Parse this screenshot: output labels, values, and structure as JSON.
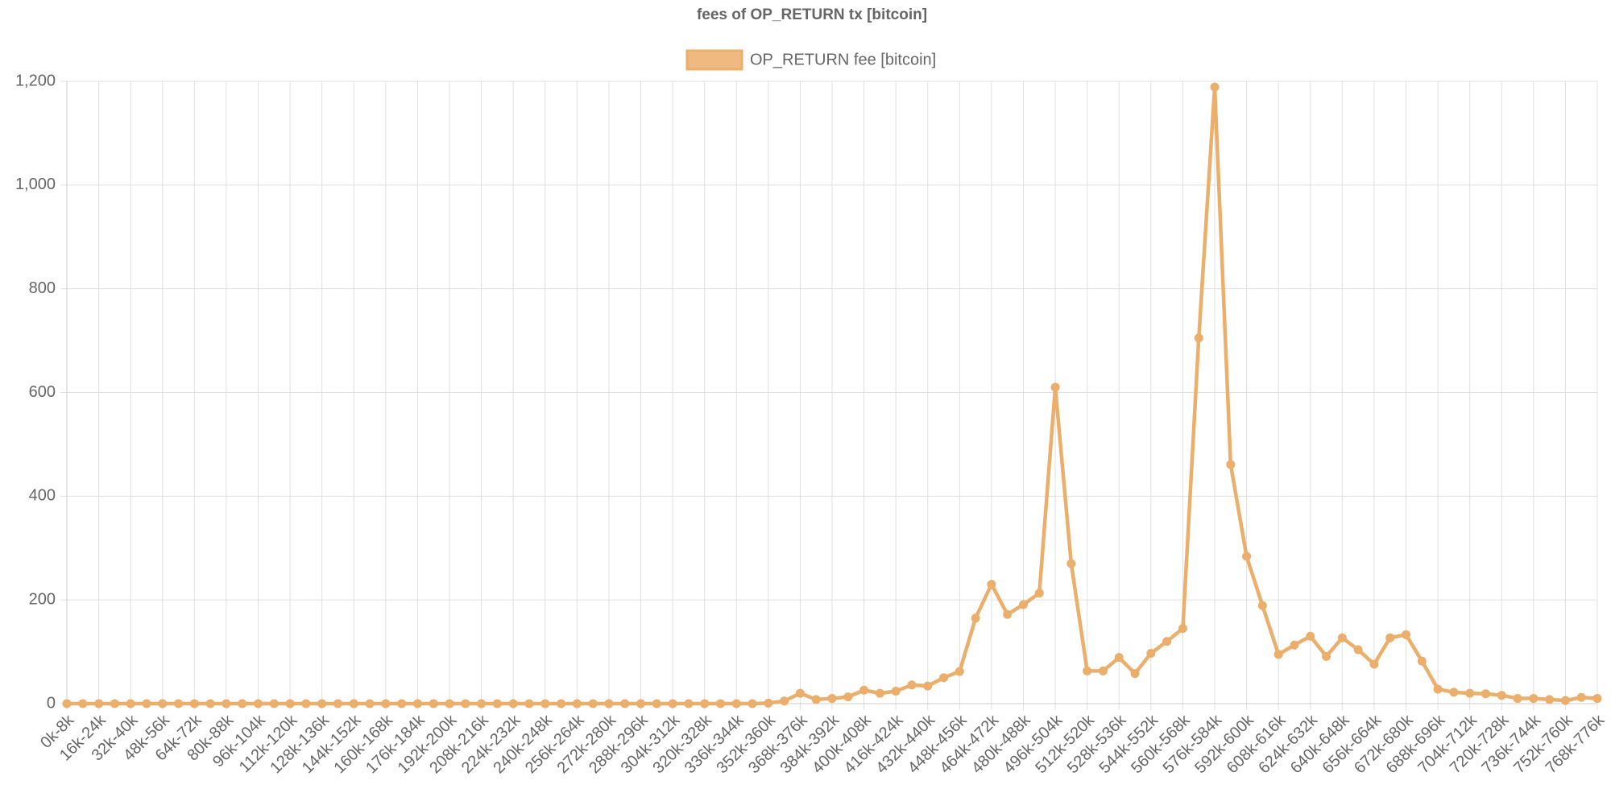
{
  "chart_data": {
    "type": "line",
    "title": "fees of OP_RETURN tx [bitcoin]",
    "categories": [
      "0k-8k",
      null,
      "16k-24k",
      null,
      "32k-40k",
      null,
      "48k-56k",
      null,
      "64k-72k",
      null,
      "80k-88k",
      null,
      "96k-104k",
      null,
      "112k-120k",
      null,
      "128k-136k",
      null,
      "144k-152k",
      null,
      "160k-168k",
      null,
      "176k-184k",
      null,
      "192k-200k",
      null,
      "208k-216k",
      null,
      "224k-232k",
      null,
      "240k-248k",
      null,
      "256k-264k",
      null,
      "272k-280k",
      null,
      "288k-296k",
      null,
      "304k-312k",
      null,
      "320k-328k",
      null,
      "336k-344k",
      null,
      "352k-360k",
      null,
      "368k-376k",
      null,
      "384k-392k",
      null,
      "400k-408k",
      null,
      "416k-424k",
      null,
      "432k-440k",
      null,
      "448k-456k",
      null,
      "464k-472k",
      null,
      "480k-488k",
      null,
      "496k-504k",
      null,
      "512k-520k",
      null,
      "528k-536k",
      null,
      "544k-552k",
      null,
      "560k-568k",
      null,
      "576k-584k",
      null,
      "592k-600k",
      null,
      "608k-616k",
      null,
      "624k-632k",
      null,
      "640k-648k",
      null,
      "656k-664k",
      null,
      "672k-680k",
      null,
      "688k-696k",
      null,
      "704k-712k",
      null,
      "720k-728k",
      null,
      "736k-744k",
      null,
      "752k-760k",
      null,
      "768k-776k"
    ],
    "series": [
      {
        "name": "OP_RETURN fee [bitcoin]",
        "color": "#ebae6b",
        "values": [
          0,
          0,
          0,
          0,
          0,
          0,
          0,
          0,
          0,
          0,
          0,
          0,
          0,
          0,
          0,
          0,
          0,
          0,
          0,
          0,
          0,
          0,
          0,
          0,
          0,
          0,
          0,
          0,
          0,
          0,
          0,
          0,
          0,
          0,
          0,
          0,
          0,
          0,
          0,
          0,
          0,
          0,
          0,
          0,
          1,
          5,
          20,
          8,
          10,
          13,
          26,
          20,
          24,
          36,
          34,
          50,
          62,
          165,
          230,
          172,
          191,
          213,
          610,
          270,
          63,
          63,
          89,
          58,
          97,
          120,
          145,
          705,
          1189,
          461,
          284,
          189,
          95,
          113,
          130,
          91,
          127,
          104,
          76,
          127,
          133,
          82,
          28,
          22,
          20,
          19,
          16,
          10,
          10,
          8,
          6,
          12,
          10
        ]
      }
    ],
    "ylim": [
      0,
      1200
    ],
    "yticks": [
      0,
      200,
      400,
      600,
      800,
      {
        "value": 1000,
        "label": "1,000"
      },
      {
        "value": 1200,
        "label": "1,200"
      }
    ],
    "grid": true,
    "legend": "top"
  }
}
